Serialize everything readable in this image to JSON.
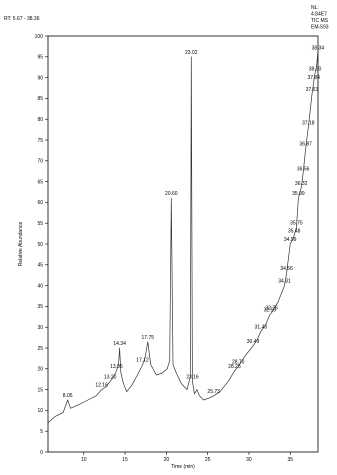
{
  "chart_data": {
    "type": "line",
    "rt_label": "RT: 5.67 - 38.36",
    "nl_label": [
      "NL:",
      "4.84E7",
      "TIC  MS",
      "EM-593"
    ],
    "xlabel": "Time (min)",
    "ylabel": "Relative Abundance",
    "xlim": [
      5.67,
      38.36
    ],
    "ylim": [
      0,
      100
    ],
    "x_ticks": [
      10,
      15,
      20,
      25,
      30,
      35
    ],
    "y_ticks": [
      0,
      5,
      10,
      15,
      20,
      25,
      30,
      35,
      40,
      45,
      50,
      55,
      60,
      65,
      70,
      75,
      80,
      85,
      90,
      95,
      100
    ],
    "series": [
      {
        "x": [
          5.67,
          6.5,
          7.5,
          8.05,
          8.4,
          9.5,
          10.5,
          11.5,
          12.16,
          12.6,
          13.2,
          13.6,
          13.95,
          14.2,
          14.34,
          14.5,
          14.8,
          15.2,
          15.8,
          16.5,
          17.12,
          17.4,
          17.75,
          18.1,
          18.8,
          19.5,
          20.1,
          20.4,
          20.6,
          20.8,
          21.2,
          21.8,
          22.5,
          22.9,
          23.02,
          23.15,
          23.4,
          23.7,
          24.0,
          24.5,
          25.2,
          25.73,
          26.5,
          27.5,
          28.25,
          28.7,
          29.5,
          30.49,
          31.0,
          31.43,
          32.0,
          32.53,
          32.75,
          33.5,
          34.31,
          34.56,
          34.99,
          35.48,
          35.75,
          35.99,
          36.32,
          36.56,
          36.87,
          37.18,
          37.63,
          37.84,
          38.0,
          38.2,
          38.34,
          38.36
        ],
        "y": [
          7,
          8.5,
          9.5,
          12.5,
          10.5,
          11.5,
          12.5,
          13.5,
          15,
          15.5,
          17,
          18,
          19.5,
          21,
          25,
          19,
          16.5,
          14.5,
          16,
          18.5,
          21,
          22.5,
          26.5,
          21,
          18.5,
          19,
          20,
          22,
          61,
          21,
          19,
          16.5,
          15,
          18,
          95,
          17,
          14,
          15,
          13.5,
          12.5,
          13,
          13.5,
          14.5,
          17,
          19.5,
          20.5,
          23,
          25.5,
          27,
          29,
          30.5,
          33,
          33.5,
          36,
          40,
          43,
          50,
          52,
          54,
          61,
          63.5,
          67,
          73,
          78,
          86,
          89,
          91,
          93,
          96,
          96
        ]
      }
    ],
    "annotations": [
      {
        "label": "8.05",
        "x": 8.05,
        "y": 12.5
      },
      {
        "label": "12.16",
        "x": 12.16,
        "y": 15
      },
      {
        "label": "13.20",
        "x": 13.2,
        "y": 17
      },
      {
        "label": "13.95",
        "x": 13.95,
        "y": 19.5
      },
      {
        "label": "14.34",
        "x": 14.34,
        "y": 25
      },
      {
        "label": "17.12",
        "x": 17.12,
        "y": 21
      },
      {
        "label": "17.75",
        "x": 17.75,
        "y": 26.5
      },
      {
        "label": "20.60",
        "x": 20.6,
        "y": 61
      },
      {
        "label": "23.02",
        "x": 23.02,
        "y": 95
      },
      {
        "label": "23.16",
        "x": 23.16,
        "y": 17
      },
      {
        "label": "25.73",
        "x": 25.73,
        "y": 13.5
      },
      {
        "label": "28.25",
        "x": 28.25,
        "y": 19.5
      },
      {
        "label": "28.70",
        "x": 28.7,
        "y": 20.5
      },
      {
        "label": "30.49",
        "x": 30.49,
        "y": 25.5
      },
      {
        "label": "31.43",
        "x": 31.43,
        "y": 29
      },
      {
        "label": "32.53",
        "x": 32.53,
        "y": 33
      },
      {
        "label": "32.75",
        "x": 32.75,
        "y": 33.5
      },
      {
        "label": "34.31",
        "x": 34.31,
        "y": 40
      },
      {
        "label": "34.56",
        "x": 34.56,
        "y": 43
      },
      {
        "label": "34.99",
        "x": 34.99,
        "y": 50
      },
      {
        "label": "35.48",
        "x": 35.48,
        "y": 52
      },
      {
        "label": "35.75",
        "x": 35.75,
        "y": 54
      },
      {
        "label": "35.99",
        "x": 35.99,
        "y": 61
      },
      {
        "label": "36.32",
        "x": 36.32,
        "y": 63.5
      },
      {
        "label": "36.56",
        "x": 36.56,
        "y": 67
      },
      {
        "label": "36.87",
        "x": 36.87,
        "y": 73
      },
      {
        "label": "37.18",
        "x": 37.18,
        "y": 78
      },
      {
        "label": "37.63",
        "x": 37.63,
        "y": 86
      },
      {
        "label": "37.84",
        "x": 37.84,
        "y": 89
      },
      {
        "label": "38.00",
        "x": 38.0,
        "y": 91
      },
      {
        "label": "38.34",
        "x": 38.34,
        "y": 96
      }
    ],
    "grid": false,
    "line_color": "#333333"
  }
}
